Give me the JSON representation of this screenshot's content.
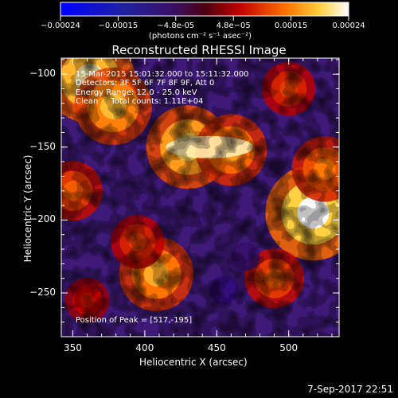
{
  "chart_data": {
    "type": "heatmap",
    "title": "Reconstructed RHESSI Image",
    "xlabel": "Heliocentric X (arcsec)",
    "ylabel": "Heliocentric Y (arcsec)",
    "xlim": [
      342,
      535
    ],
    "ylim": [
      -280,
      -89
    ],
    "x_ticks": [
      350,
      400,
      450,
      500
    ],
    "y_ticks": [
      -100,
      -150,
      -200,
      -250
    ],
    "colorbar": {
      "ticks": [
        "-0.00024",
        "-0.00015",
        "-4.8e-05",
        "4.8e-05",
        "0.00015",
        "0.00024"
      ],
      "units": "(photons cm⁻² s⁻¹ asec⁻²)",
      "range": [
        -0.00024,
        0.00024
      ]
    },
    "annotations": [
      "15-Mar-2015 15:01:32.000 to 15:11:32.000",
      "Detectors: 3F 5F 6F 7F 8F 9F, Att 0",
      "Energy Range: 12.0 - 25.0 keV",
      "Clean     Total counts: 1.11E+04"
    ],
    "peak_label": "Position of Peak = [517,-195]",
    "peak": [
      517,
      -195
    ],
    "sources": [
      {
        "x": 362,
        "y": -103,
        "value": 0.00022
      },
      {
        "x": 378,
        "y": -122,
        "value": 0.00018
      },
      {
        "x": 350,
        "y": -180,
        "value": 0.00012
      },
      {
        "x": 430,
        "y": -150,
        "value": 0.0002
      },
      {
        "x": 460,
        "y": -152,
        "value": 0.00016
      },
      {
        "x": 517,
        "y": -195,
        "value": 0.00024
      },
      {
        "x": 525,
        "y": -165,
        "value": 0.00014
      },
      {
        "x": 408,
        "y": -237,
        "value": 0.00017
      },
      {
        "x": 395,
        "y": -215,
        "value": 0.0001
      },
      {
        "x": 490,
        "y": -240,
        "value": 0.00012
      },
      {
        "x": 500,
        "y": -110,
        "value": 0.0001
      },
      {
        "x": 360,
        "y": -255,
        "value": 7e-05
      }
    ],
    "minima": [
      {
        "x": 455,
        "y": -248,
        "value": -8e-05
      },
      {
        "x": 470,
        "y": -225,
        "value": -6e-05
      }
    ]
  },
  "footer": {
    "date": "7-Sep-2017 22:51"
  },
  "colors": {
    "background": "#000000",
    "text": "#ffffff"
  }
}
